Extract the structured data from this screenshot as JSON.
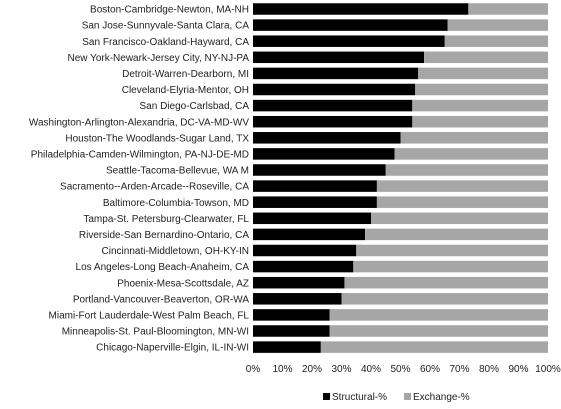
{
  "chart_data": {
    "type": "bar",
    "orientation": "horizontal",
    "stacked": "percent",
    "title": "",
    "xlabel": "",
    "ylabel": "",
    "xlim": [
      0,
      100
    ],
    "x_ticks": [
      "0%",
      "10%",
      "20%",
      "30%",
      "40%",
      "50%",
      "60%",
      "70%",
      "80%",
      "90%",
      "100%"
    ],
    "grid": false,
    "legend_position": "bottom",
    "categories": [
      "Boston-Cambridge-Newton, MA-NH",
      "San Jose-Sunnyvale-Santa Clara, CA",
      "San Francisco-Oakland-Hayward, CA",
      "New York-Newark-Jersey City, NY-NJ-PA",
      "Detroit-Warren-Dearborn, MI",
      "Cleveland-Elyria-Mentor, OH",
      "San Diego-Carlsbad, CA",
      "Washington-Arlington-Alexandria, DC-VA-MD-WV",
      "Houston-The Woodlands-Sugar Land, TX",
      "Philadelphia-Camden-Wilmington, PA-NJ-DE-MD",
      "Seattle-Tacoma-Bellevue, WA M",
      "Sacramento--Arden-Arcade--Roseville, CA",
      "Baltimore-Columbia-Towson, MD",
      "Tampa-St. Petersburg-Clearwater, FL",
      "Riverside-San Bernardino-Ontario, CA",
      "Cincinnati-Middletown, OH-KY-IN",
      "Los Angeles-Long Beach-Anaheim, CA",
      "Phoenix-Mesa-Scottsdale, AZ",
      "Portland-Vancouver-Beaverton, OR-WA",
      "Miami-Fort Lauderdale-West Palm Beach, FL",
      "Minneapolis-St. Paul-Bloomington, MN-WI",
      "Chicago-Naperville-Elgin, IL-IN-WI"
    ],
    "series": [
      {
        "name": "Structural-%",
        "color": "#000000",
        "values": [
          73,
          66,
          65,
          58,
          56,
          55,
          54,
          54,
          50,
          48,
          45,
          42,
          42,
          40,
          38,
          35,
          34,
          31,
          30,
          26,
          26,
          23
        ]
      },
      {
        "name": "Exchange-%",
        "color": "#a6a6a6",
        "values": [
          27,
          34,
          35,
          42,
          44,
          45,
          46,
          46,
          50,
          52,
          55,
          58,
          58,
          60,
          62,
          65,
          66,
          69,
          70,
          74,
          74,
          77
        ]
      }
    ]
  }
}
